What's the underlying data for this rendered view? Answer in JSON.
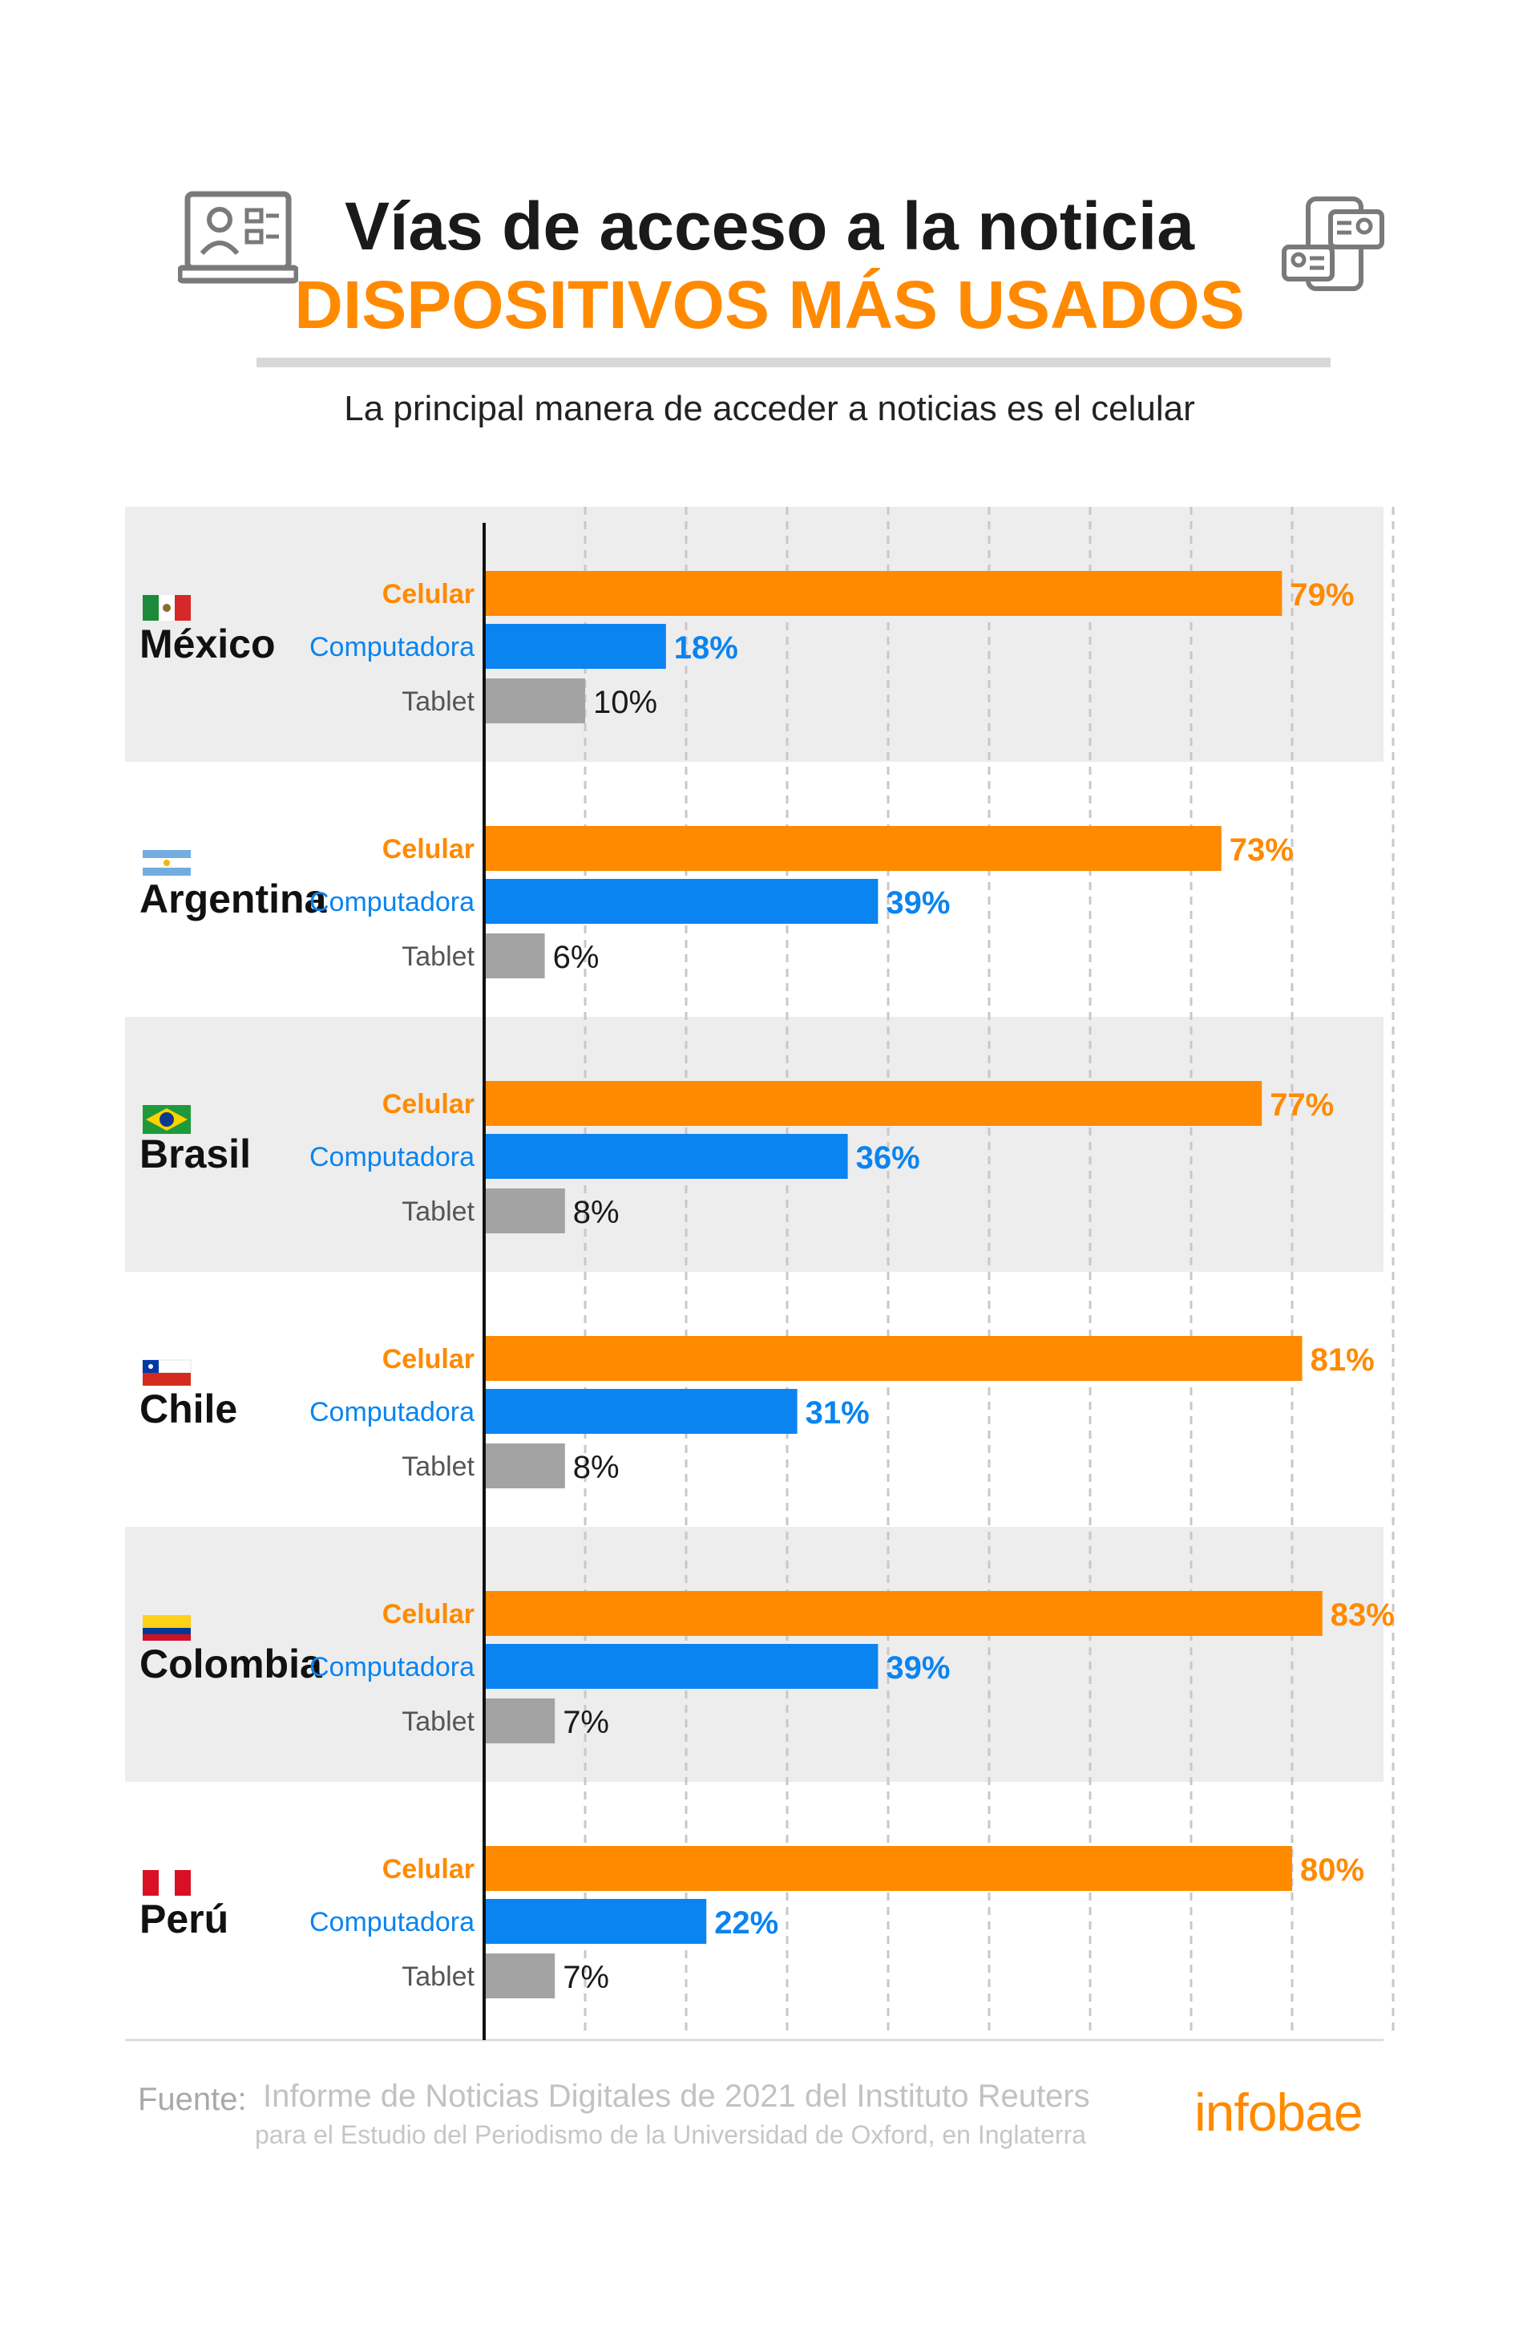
{
  "header": {
    "title": "Vías de acceso a la noticia",
    "subtitle": "DISPOSITIVOS MÁS USADOS",
    "note": "La principal manera de acceder a noticias es el celular"
  },
  "icons": {
    "left": "laptop-profile-icon",
    "right": "devices-profile-icon"
  },
  "colors": {
    "celular": "#ff8a00",
    "computadora": "#0a84f0",
    "tablet": "#a3a3a3",
    "band": "#ededed",
    "accent": "#ff8a00"
  },
  "chart_data": {
    "type": "bar",
    "orientation": "horizontal",
    "categories": [
      "México",
      "Argentina",
      "Brasil",
      "Chile",
      "Colombia",
      "Perú"
    ],
    "series": [
      {
        "name": "Celular",
        "values": [
          79,
          73,
          77,
          81,
          83,
          80
        ]
      },
      {
        "name": "Computadora",
        "values": [
          18,
          39,
          36,
          31,
          39,
          22
        ]
      },
      {
        "name": "Tablet",
        "values": [
          10,
          6,
          8,
          8,
          7,
          7
        ]
      }
    ],
    "xlim": [
      0,
      90
    ],
    "value_suffix": "%",
    "grid": true,
    "flags": [
      "mexico-flag-icon",
      "argentina-flag-icon",
      "brasil-flag-icon",
      "chile-flag-icon",
      "colombia-flag-icon",
      "peru-flag-icon"
    ]
  },
  "footer": {
    "source_label": "Fuente:",
    "source_line1": "Informe de Noticias Digitales de 2021 del Instituto Reuters",
    "source_line2": "para el Estudio del Periodismo de la Universidad de Oxford, en Inglaterra",
    "logo": "infobae"
  }
}
